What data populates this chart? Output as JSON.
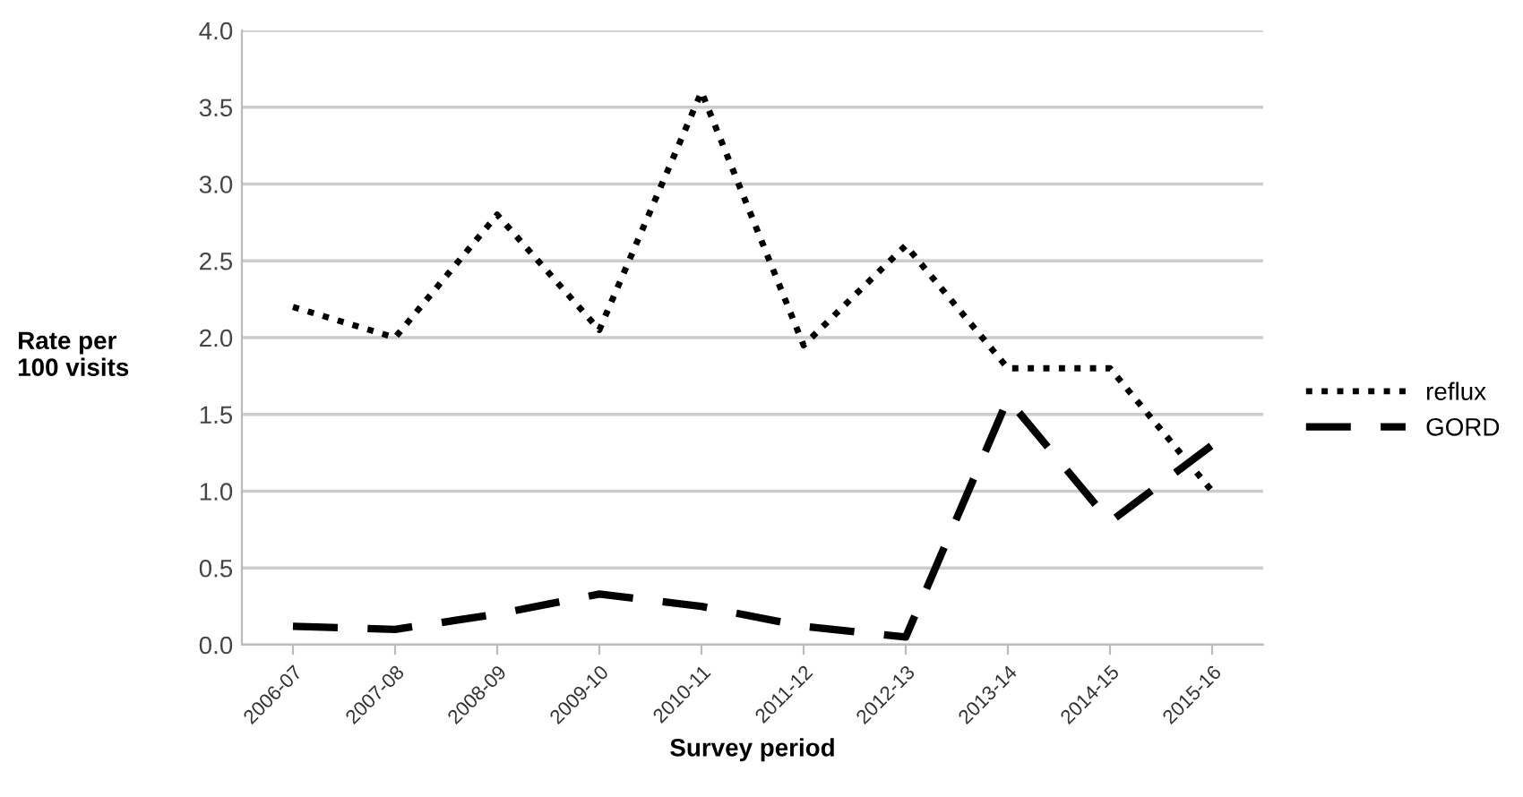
{
  "chart_data": {
    "type": "line",
    "xlabel": "Survey period",
    "ylabel": "Rate per\n100 visits",
    "categories": [
      "2006-07",
      "2007-08",
      "2008-09",
      "2009-10",
      "2010-11",
      "2011-12",
      "2012-13",
      "2013-14",
      "2014-15",
      "2015-16"
    ],
    "series": [
      {
        "name": "reflux",
        "color": "#000000",
        "line_style": "dotted",
        "values": [
          2.2,
          2.0,
          2.8,
          2.05,
          3.6,
          1.95,
          2.6,
          1.8,
          1.8,
          1.0
        ]
      },
      {
        "name": "GORD",
        "color": "#000000",
        "line_style": "dashed",
        "values": [
          0.12,
          0.1,
          0.2,
          0.33,
          0.25,
          0.12,
          0.05,
          1.6,
          0.8,
          1.3
        ]
      }
    ],
    "ylim": [
      0,
      4
    ],
    "yticks": [
      {
        "value": 0,
        "label": "0.0"
      },
      {
        "value": 0.5,
        "label": "0.5"
      },
      {
        "value": 1,
        "label": "1.0"
      },
      {
        "value": 1.5,
        "label": "1.5"
      },
      {
        "value": 2,
        "label": "2.0"
      },
      {
        "value": 2.5,
        "label": "2.5"
      },
      {
        "value": 3,
        "label": "3.0"
      },
      {
        "value": 3.5,
        "label": "3.5"
      },
      {
        "value": 4,
        "label": "4.0"
      }
    ],
    "grid": "y",
    "legend": "right",
    "marker": "none"
  }
}
